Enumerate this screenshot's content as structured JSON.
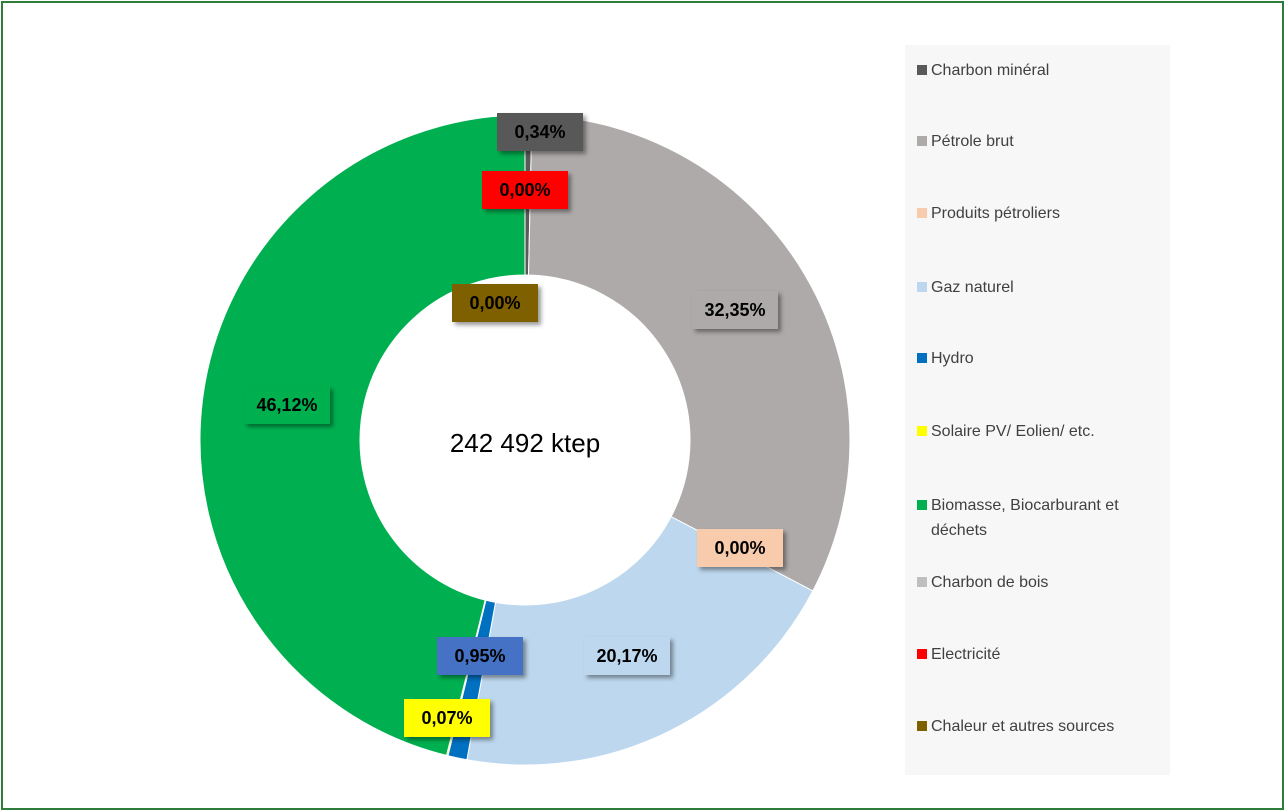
{
  "chart_data": {
    "type": "donut",
    "annotation": "242 492 ktep",
    "categories": [
      "Charbon minéral",
      "Pétrole brut",
      "Produits pétroliers",
      "Gaz naturel",
      "Hydro",
      "Solaire PV/ Eolien/ etc.",
      "Biomasse, Biocarburant et déchets",
      "Charbon de bois",
      "Electricité",
      "Chaleur et autres sources"
    ],
    "values": [
      0.34,
      32.35,
      0.0,
      20.17,
      0.95,
      0.07,
      46.12,
      0,
      0.0,
      0.0
    ],
    "value_labels": [
      "0,34%",
      "32,35%",
      "0,00%",
      "20,17%",
      "0,95%",
      "0,07%",
      "46,12%",
      null,
      "0,00%",
      "0,00%"
    ],
    "colors": [
      "#595959",
      "#aeaaaa",
      "#f8cbad",
      "#bdd7ee",
      "#0070c0",
      "#ffff00",
      "#00b050",
      "#bfbfbf",
      "#ff0000",
      "#7f6000"
    ],
    "legend": "right"
  }
}
